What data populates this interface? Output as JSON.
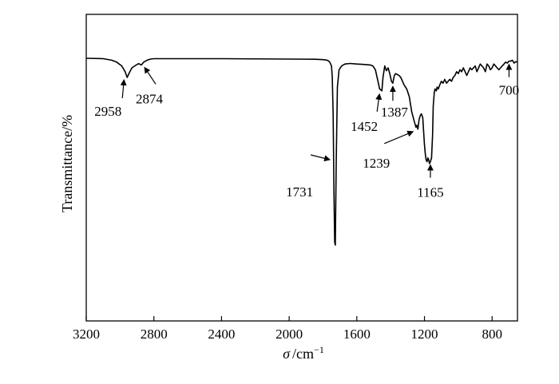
{
  "chart_data": {
    "type": "line",
    "title": "",
    "xlabel_symbol": "σ",
    "xlabel_unit": "/cm",
    "xlabel_exponent": "−1",
    "ylabel": "Transmittance/%",
    "xlim": [
      3200,
      650
    ],
    "x_reversed": true,
    "ylim": [
      0,
      100
    ],
    "grid": false,
    "legend": false,
    "x_ticks": [
      3200,
      2800,
      2400,
      2000,
      1600,
      1200,
      800
    ],
    "x_tick_labels": [
      "3200",
      "2800",
      "2400",
      "2000",
      "1600",
      "1200",
      "800"
    ],
    "series": [
      {
        "color": "#000000",
        "x": [
          3200,
          3100,
          3050,
          3020,
          2990,
          2970,
          2958,
          2945,
          2930,
          2910,
          2890,
          2874,
          2860,
          2840,
          2820,
          2800,
          2400,
          2000,
          1850,
          1800,
          1780,
          1770,
          1760,
          1750,
          1745,
          1740,
          1735,
          1731,
          1727,
          1722,
          1715,
          1705,
          1690,
          1670,
          1640,
          1600,
          1560,
          1520,
          1505,
          1490,
          1475,
          1465,
          1452,
          1445,
          1435,
          1425,
          1415,
          1405,
          1395,
          1387,
          1378,
          1370,
          1360,
          1350,
          1340,
          1330,
          1320,
          1305,
          1290,
          1275,
          1260,
          1250,
          1245,
          1239,
          1232,
          1225,
          1218,
          1210,
          1200,
          1195,
          1190,
          1185,
          1180,
          1175,
          1170,
          1165,
          1158,
          1152,
          1148,
          1142,
          1138,
          1130,
          1125,
          1118,
          1110,
          1100,
          1090,
          1080,
          1070,
          1060,
          1050,
          1040,
          1030,
          1020,
          1010,
          1000,
          990,
          980,
          970,
          960,
          950,
          940,
          930,
          920,
          910,
          900,
          890,
          880,
          870,
          860,
          850,
          840,
          830,
          820,
          810,
          800,
          790,
          780,
          770,
          760,
          750,
          740,
          730,
          720,
          710,
          700,
          690,
          680,
          670,
          660,
          650
        ],
        "y": [
          100,
          99.8,
          99,
          98,
          96,
          93,
          90,
          92.5,
          95,
          96.2,
          97.2,
          96.5,
          98,
          99,
          99.6,
          99.8,
          99.8,
          99.6,
          99.5,
          99.3,
          99.1,
          98.8,
          98,
          96,
          90,
          70,
          30,
          4,
          2.5,
          45,
          85,
          94,
          96,
          97,
          97.3,
          97,
          96.8,
          96.5,
          96,
          94,
          88,
          84,
          83,
          90,
          96,
          93.5,
          95,
          92,
          88,
          87,
          91,
          92,
          91.5,
          91,
          90,
          88,
          86,
          84,
          80,
          72,
          67,
          64,
          65,
          63,
          68,
          70,
          71,
          69,
          55,
          50,
          47,
          46,
          48,
          47,
          45,
          46,
          48,
          60,
          75,
          82,
          84,
          83,
          85,
          84,
          86,
          88,
          87,
          89,
          87,
          88,
          89,
          88,
          90,
          91,
          93,
          92,
          94,
          93,
          95,
          93,
          91,
          93,
          95,
          94,
          95,
          96,
          93,
          95,
          97,
          96,
          95,
          93,
          97,
          96,
          94,
          95,
          97,
          96,
          95,
          94,
          95,
          96,
          97,
          98,
          97.5,
          98.5,
          98.5,
          99,
          97.5,
          98.2,
          98
        ]
      }
    ],
    "annotations": [
      {
        "label": "2958",
        "x": 2958
      },
      {
        "label": "2874",
        "x": 2874
      },
      {
        "label": "1731",
        "x": 1731
      },
      {
        "label": "1452",
        "x": 1452
      },
      {
        "label": "1387",
        "x": 1387
      },
      {
        "label": "1239",
        "x": 1239
      },
      {
        "label": "1165",
        "x": 1165
      },
      {
        "label": "700",
        "x": 700
      }
    ]
  }
}
